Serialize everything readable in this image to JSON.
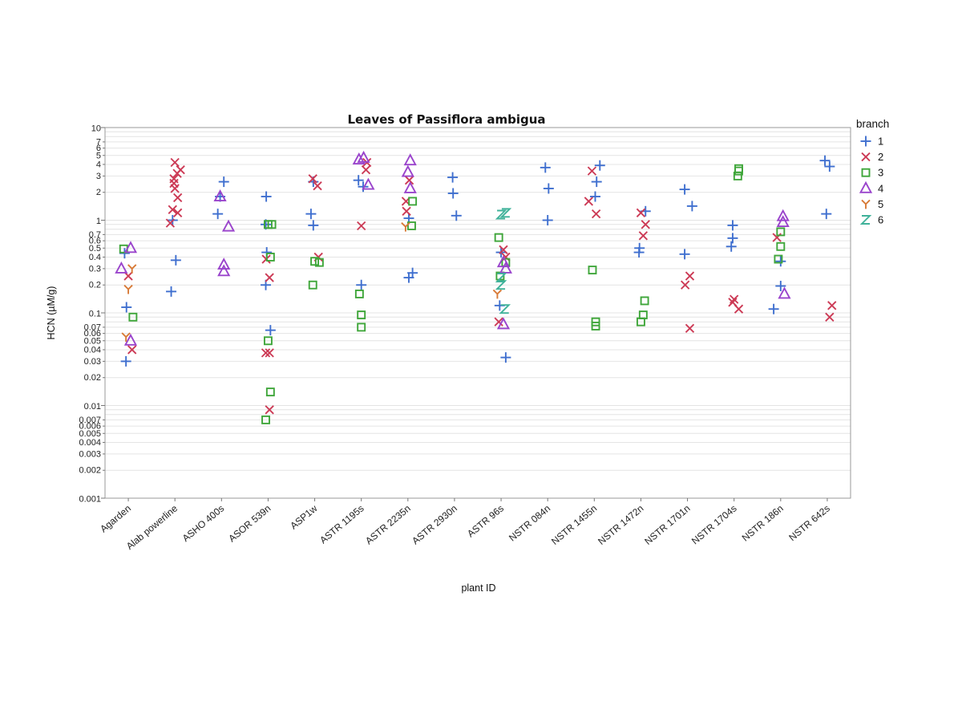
{
  "chart_data": {
    "type": "scatter",
    "title": "Leaves of Passiflora ambigua",
    "xlabel": "plant ID",
    "ylabel": "HCN (µM/g)",
    "yscale": "log",
    "ylim": [
      0.001,
      10
    ],
    "grid": true,
    "legend": {
      "title": "branch",
      "placement": "right"
    },
    "y_tick_labels": [
      {
        "v": 10,
        "t": "10",
        "major": true
      },
      {
        "v": 7,
        "t": "7"
      },
      {
        "v": 6,
        "t": "6"
      },
      {
        "v": 5,
        "t": "5"
      },
      {
        "v": 4,
        "t": "4"
      },
      {
        "v": 3,
        "t": "3"
      },
      {
        "v": 2,
        "t": "2"
      },
      {
        "v": 1,
        "t": "1",
        "major": true
      },
      {
        "v": 0.7,
        "t": "0.7"
      },
      {
        "v": 0.6,
        "t": "0.6"
      },
      {
        "v": 0.5,
        "t": "0.5"
      },
      {
        "v": 0.4,
        "t": "0.4"
      },
      {
        "v": 0.3,
        "t": "0.3"
      },
      {
        "v": 0.2,
        "t": "0.2"
      },
      {
        "v": 0.1,
        "t": "0.1",
        "major": true
      },
      {
        "v": 0.07,
        "t": "0.07"
      },
      {
        "v": 0.06,
        "t": "0.06"
      },
      {
        "v": 0.05,
        "t": "0.05"
      },
      {
        "v": 0.04,
        "t": "0.04"
      },
      {
        "v": 0.03,
        "t": "0.03"
      },
      {
        "v": 0.02,
        "t": "0.02"
      },
      {
        "v": 0.01,
        "t": "0.01",
        "major": true
      },
      {
        "v": 0.007,
        "t": "0.007"
      },
      {
        "v": 0.006,
        "t": "0.006"
      },
      {
        "v": 0.005,
        "t": "0.005"
      },
      {
        "v": 0.004,
        "t": "0.004"
      },
      {
        "v": 0.003,
        "t": "0.003"
      },
      {
        "v": 0.002,
        "t": "0.002"
      },
      {
        "v": 0.001,
        "t": "0.001",
        "major": true
      }
    ],
    "categories": [
      "Agarden",
      "Alab powerline",
      "ASHO 400s",
      "ASOR 539n",
      "ASP1w",
      "ASTR 1195s",
      "ASTR 2235n",
      "ASTR 2930n",
      "ASTR 96s",
      "NSTR 084n",
      "NSTR 1455n",
      "NSTR 1472n",
      "NSTR 1701n",
      "NSTR 1704s",
      "NSTR 186n",
      "NSTR 642s"
    ],
    "series": [
      {
        "name": "1",
        "marker": "plus",
        "color": "#3f6fcf",
        "points": [
          [
            "Agarden",
            -0.08,
            0.44
          ],
          [
            "Agarden",
            -0.04,
            0.115
          ],
          [
            "Agarden",
            -0.05,
            0.03
          ],
          [
            "Alab powerline",
            -0.05,
            1.0
          ],
          [
            "Alab powerline",
            0.02,
            0.37
          ],
          [
            "Alab powerline",
            -0.08,
            0.17
          ],
          [
            "ASHO 400s",
            0.05,
            2.6
          ],
          [
            "ASHO 400s",
            -0.03,
            1.8
          ],
          [
            "ASHO 400s",
            -0.08,
            1.17
          ],
          [
            "ASOR 539n",
            -0.04,
            1.8
          ],
          [
            "ASOR 539n",
            -0.05,
            0.9
          ],
          [
            "ASOR 539n",
            -0.03,
            0.45
          ],
          [
            "ASOR 539n",
            -0.05,
            0.2
          ],
          [
            "ASOR 539n",
            0.05,
            0.065
          ],
          [
            "ASP1w",
            -0.03,
            2.6
          ],
          [
            "ASP1w",
            -0.08,
            1.17
          ],
          [
            "ASP1w",
            -0.03,
            0.88
          ],
          [
            "ASTR 1195s",
            -0.06,
            2.7
          ],
          [
            "ASTR 1195s",
            0.04,
            2.3
          ],
          [
            "ASTR 1195s",
            0.0,
            0.2
          ],
          [
            "ASTR 2235n",
            0.02,
            1.05
          ],
          [
            "ASTR 2235n",
            0.1,
            0.27
          ],
          [
            "ASTR 2235n",
            0.02,
            0.24
          ],
          [
            "ASTR 2930n",
            -0.04,
            2.9
          ],
          [
            "ASTR 2930n",
            -0.03,
            1.95
          ],
          [
            "ASTR 2930n",
            0.04,
            1.12
          ],
          [
            "ASTR 96s",
            0.0,
            0.45
          ],
          [
            "ASTR 96s",
            -0.03,
            0.12
          ],
          [
            "ASTR 96s",
            0.1,
            0.033
          ],
          [
            "NSTR 084n",
            -0.05,
            3.7
          ],
          [
            "NSTR 084n",
            0.02,
            2.2
          ],
          [
            "NSTR 084n",
            0.0,
            1.0
          ],
          [
            "NSTR 1455n",
            0.12,
            3.9
          ],
          [
            "NSTR 1455n",
            0.05,
            2.6
          ],
          [
            "NSTR 1455n",
            0.02,
            1.8
          ],
          [
            "NSTR 1472n",
            0.1,
            1.25
          ],
          [
            "NSTR 1472n",
            -0.03,
            0.5
          ],
          [
            "NSTR 1472n",
            -0.04,
            0.45
          ],
          [
            "NSTR 1701n",
            -0.06,
            2.15
          ],
          [
            "NSTR 1701n",
            0.1,
            1.42
          ],
          [
            "NSTR 1701n",
            -0.06,
            0.43
          ],
          [
            "NSTR 1704s",
            -0.03,
            0.88
          ],
          [
            "NSTR 1704s",
            -0.03,
            0.64
          ],
          [
            "NSTR 1704s",
            -0.06,
            0.52
          ],
          [
            "NSTR 186n",
            0.0,
            0.36
          ],
          [
            "NSTR 186n",
            0.0,
            0.195
          ],
          [
            "NSTR 186n",
            -0.15,
            0.11
          ],
          [
            "NSTR 642s",
            -0.05,
            4.4
          ],
          [
            "NSTR 642s",
            0.05,
            3.8
          ],
          [
            "NSTR 642s",
            -0.02,
            1.17
          ]
        ]
      },
      {
        "name": "2",
        "marker": "x",
        "color": "#cc3a55",
        "points": [
          [
            "Agarden",
            0.0,
            0.25
          ],
          [
            "Agarden",
            0.08,
            0.04
          ],
          [
            "Alab powerline",
            0.0,
            4.2
          ],
          [
            "Alab powerline",
            0.12,
            3.5
          ],
          [
            "Alab powerline",
            0.05,
            3.2
          ],
          [
            "Alab powerline",
            -0.02,
            2.8
          ],
          [
            "Alab powerline",
            -0.02,
            2.5
          ],
          [
            "Alab powerline",
            0.0,
            2.2
          ],
          [
            "Alab powerline",
            0.06,
            1.75
          ],
          [
            "Alab powerline",
            -0.05,
            1.3
          ],
          [
            "Alab powerline",
            0.06,
            1.2
          ],
          [
            "Alab powerline",
            -0.1,
            0.93
          ],
          [
            "ASOR 539n",
            -0.04,
            0.38
          ],
          [
            "ASOR 539n",
            0.03,
            0.24
          ],
          [
            "ASOR 539n",
            -0.05,
            0.037
          ],
          [
            "ASOR 539n",
            0.03,
            0.037
          ],
          [
            "ASOR 539n",
            0.03,
            0.009
          ],
          [
            "ASP1w",
            -0.04,
            2.8
          ],
          [
            "ASP1w",
            0.06,
            2.35
          ],
          [
            "ASP1w",
            0.08,
            0.4
          ],
          [
            "ASTR 1195s",
            0.12,
            4.2
          ],
          [
            "ASTR 1195s",
            0.1,
            3.5
          ],
          [
            "ASTR 1195s",
            0.0,
            0.87
          ],
          [
            "ASTR 2235n",
            0.03,
            2.7
          ],
          [
            "ASTR 2235n",
            -0.04,
            1.6
          ],
          [
            "ASTR 2235n",
            -0.03,
            1.25
          ],
          [
            "ASTR 96s",
            0.05,
            0.48
          ],
          [
            "ASTR 96s",
            0.1,
            0.4
          ],
          [
            "ASTR 96s",
            -0.05,
            0.08
          ],
          [
            "NSTR 1455n",
            -0.05,
            3.4
          ],
          [
            "NSTR 1455n",
            -0.12,
            1.6
          ],
          [
            "NSTR 1455n",
            0.04,
            1.17
          ],
          [
            "NSTR 1472n",
            0.0,
            1.2
          ],
          [
            "NSTR 1472n",
            0.1,
            0.9
          ],
          [
            "NSTR 1472n",
            0.05,
            0.68
          ],
          [
            "NSTR 1701n",
            0.05,
            0.25
          ],
          [
            "NSTR 1701n",
            -0.05,
            0.2
          ],
          [
            "NSTR 1701n",
            0.05,
            0.068
          ],
          [
            "NSTR 1704s",
            0.0,
            0.14
          ],
          [
            "NSTR 1704s",
            -0.03,
            0.13
          ],
          [
            "NSTR 1704s",
            0.1,
            0.11
          ],
          [
            "NSTR 186n",
            -0.08,
            0.65
          ],
          [
            "NSTR 642s",
            0.1,
            0.12
          ],
          [
            "NSTR 642s",
            0.05,
            0.09
          ]
        ]
      },
      {
        "name": "3",
        "marker": "square",
        "color": "#3fa63a",
        "points": [
          [
            "Agarden",
            -0.1,
            0.49
          ],
          [
            "Agarden",
            0.1,
            0.09
          ],
          [
            "ASOR 539n",
            0.08,
            0.9
          ],
          [
            "ASOR 539n",
            0.0,
            0.9
          ],
          [
            "ASOR 539n",
            0.05,
            0.4
          ],
          [
            "ASOR 539n",
            0.0,
            0.05
          ],
          [
            "ASOR 539n",
            0.05,
            0.014
          ],
          [
            "ASOR 539n",
            -0.05,
            0.007
          ],
          [
            "ASP1w",
            0.0,
            0.36
          ],
          [
            "ASP1w",
            0.1,
            0.35
          ],
          [
            "ASP1w",
            -0.04,
            0.2
          ],
          [
            "ASTR 1195s",
            -0.04,
            0.16
          ],
          [
            "ASTR 1195s",
            0.0,
            0.095
          ],
          [
            "ASTR 1195s",
            0.0,
            0.07
          ],
          [
            "ASTR 2235n",
            0.1,
            1.6
          ],
          [
            "ASTR 2235n",
            0.08,
            0.87
          ],
          [
            "ASTR 96s",
            -0.05,
            0.65
          ],
          [
            "ASTR 96s",
            0.1,
            0.35
          ],
          [
            "ASTR 96s",
            -0.02,
            0.25
          ],
          [
            "NSTR 1455n",
            -0.04,
            0.29
          ],
          [
            "NSTR 1455n",
            0.03,
            0.08
          ],
          [
            "NSTR 1455n",
            0.03,
            0.072
          ],
          [
            "NSTR 1472n",
            0.08,
            0.135
          ],
          [
            "NSTR 1472n",
            0.05,
            0.095
          ],
          [
            "NSTR 1472n",
            0.0,
            0.08
          ],
          [
            "NSTR 1704s",
            0.1,
            3.6
          ],
          [
            "NSTR 1704s",
            0.1,
            3.4
          ],
          [
            "NSTR 1704s",
            0.08,
            3.0
          ],
          [
            "NSTR 186n",
            0.0,
            0.75
          ],
          [
            "NSTR 186n",
            0.0,
            0.52
          ],
          [
            "NSTR 186n",
            -0.05,
            0.38
          ]
        ]
      },
      {
        "name": "4",
        "marker": "triangle",
        "color": "#9a44cc",
        "points": [
          [
            "Agarden",
            0.05,
            0.5
          ],
          [
            "Agarden",
            -0.15,
            0.3
          ],
          [
            "Agarden",
            0.05,
            0.05
          ],
          [
            "ASHO 400s",
            -0.03,
            1.8
          ],
          [
            "ASHO 400s",
            0.15,
            0.85
          ],
          [
            "ASHO 400s",
            0.05,
            0.33
          ],
          [
            "ASHO 400s",
            0.05,
            0.28
          ],
          [
            "ASTR 1195s",
            0.05,
            4.7
          ],
          [
            "ASTR 1195s",
            -0.05,
            4.5
          ],
          [
            "ASTR 1195s",
            0.15,
            2.4
          ],
          [
            "ASTR 2235n",
            0.05,
            4.4
          ],
          [
            "ASTR 2235n",
            0.0,
            3.3
          ],
          [
            "ASTR 2235n",
            0.05,
            2.2
          ],
          [
            "ASTR 96s",
            0.05,
            0.35
          ],
          [
            "ASTR 96s",
            0.1,
            0.3
          ],
          [
            "ASTR 96s",
            0.05,
            0.075
          ],
          [
            "NSTR 186n",
            0.05,
            1.1
          ],
          [
            "NSTR 186n",
            0.05,
            0.95
          ],
          [
            "NSTR 186n",
            0.08,
            0.16
          ]
        ]
      },
      {
        "name": "5",
        "marker": "y",
        "color": "#d87a36",
        "points": [
          [
            "Agarden",
            0.08,
            0.3
          ],
          [
            "Agarden",
            0.0,
            0.18
          ],
          [
            "Agarden",
            -0.05,
            0.055
          ],
          [
            "ASTR 2235n",
            -0.05,
            0.85
          ],
          [
            "ASTR 96s",
            -0.08,
            0.16
          ]
        ]
      },
      {
        "name": "6",
        "marker": "z",
        "color": "#40b29a",
        "points": [
          [
            "ASTR 96s",
            0.0,
            1.15
          ],
          [
            "ASTR 96s",
            0.1,
            1.2
          ],
          [
            "ASTR 96s",
            0.0,
            0.24
          ],
          [
            "ASTR 96s",
            0.0,
            0.2
          ],
          [
            "ASTR 96s",
            0.08,
            0.11
          ]
        ]
      }
    ]
  }
}
